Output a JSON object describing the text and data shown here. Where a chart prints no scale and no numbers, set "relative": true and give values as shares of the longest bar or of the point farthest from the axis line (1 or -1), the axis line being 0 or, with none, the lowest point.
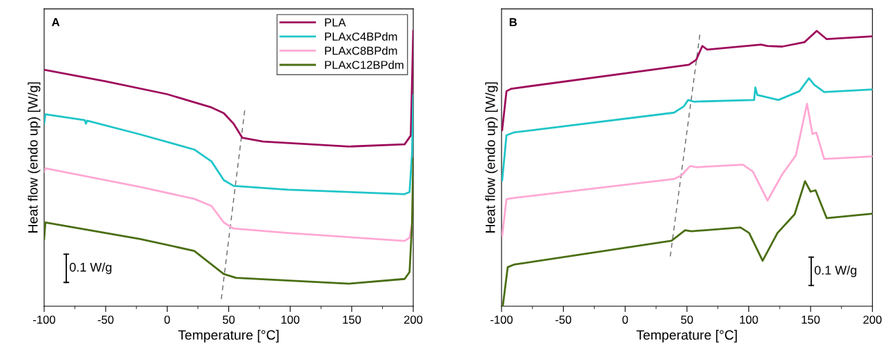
{
  "chart_data": [
    {
      "type": "line",
      "title": "A",
      "xlabel": "Temperature [°C]",
      "ylabel": "Heat flow (endo up) [W/g]",
      "relative": true,
      "xlim": [
        -100,
        200
      ],
      "xticks": [
        -100,
        -50,
        0,
        50,
        100,
        150,
        200
      ],
      "tick_labels": "x",
      "grid": false,
      "legend": "top right",
      "line_style": "solid",
      "marker": "none",
      "annotations": [
        "0.1 W/g"
      ],
      "series": [
        {
          "name": "PLA",
          "color": "#9e0a5c",
          "x": [
            -100,
            -50,
            0,
            36,
            46,
            54,
            61,
            78,
            148,
            193,
            198,
            200
          ],
          "values": [
            0.859,
            0.817,
            0.77,
            0.722,
            0.701,
            0.663,
            0.612,
            0.598,
            0.58,
            0.588,
            0.62,
            1.0
          ]
        },
        {
          "name": "PLAxC4BPdm",
          "color": "#20c5c8",
          "x": [
            -100,
            -99,
            -67,
            -66,
            -65,
            -22,
            22,
            36,
            46,
            54,
            98,
            193,
            197,
            199,
            200
          ],
          "values": [
            0.663,
            0.697,
            0.676,
            0.663,
            0.674,
            0.624,
            0.569,
            0.526,
            0.458,
            0.437,
            0.423,
            0.407,
            0.415,
            0.553,
            0.766
          ]
        },
        {
          "name": "PLAxC8BPdm",
          "color": "#ffa8d4",
          "x": [
            -100,
            -99,
            -22,
            22,
            36,
            46,
            54,
            98,
            193,
            197,
            199
          ],
          "values": [
            0.488,
            0.501,
            0.433,
            0.39,
            0.364,
            0.304,
            0.282,
            0.266,
            0.237,
            0.249,
            0.297
          ]
        },
        {
          "name": "PLAxC12BPdm",
          "color": "#4a6e12",
          "x": [
            -100,
            -99,
            -22,
            22,
            34,
            46,
            56,
            148,
            193,
            197,
            199,
            200
          ],
          "values": [
            0.244,
            0.304,
            0.244,
            0.201,
            0.159,
            0.117,
            0.103,
            0.082,
            0.099,
            0.124,
            0.297,
            0.536
          ]
        },
        {
          "type": "line",
          "color": "#666666",
          "line_style": "dashed",
          "x": [
            63,
            44
          ],
          "values": [
            0.711,
            0.026
          ]
        }
      ]
    },
    {
      "type": "line",
      "title": "B",
      "xlabel": "Temperature [°C]",
      "ylabel": "Heat flow (endo up) [W/g]",
      "relative": true,
      "xlim": [
        -100,
        200
      ],
      "xticks": [
        -100,
        -50,
        0,
        50,
        100,
        150,
        200
      ],
      "tick_labels": "x",
      "grid": false,
      "line_style": "solid",
      "marker": "none",
      "annotations": [
        "0.1 W/g"
      ],
      "series": [
        {
          "color": "#9e0a5c",
          "x": [
            -99.5,
            -96,
            -92,
            51.5,
            57.5,
            62.4,
            66.4,
            110,
            115,
            127,
            145,
            155,
            163,
            200
          ],
          "values": [
            0.64,
            0.781,
            0.79,
            0.877,
            0.895,
            0.945,
            0.932,
            0.95,
            0.945,
            0.943,
            0.959,
            1.0,
            0.97,
            0.98
          ]
        },
        {
          "color": "#20c5c8",
          "x": [
            -99.5,
            -96,
            -90,
            39.5,
            47.5,
            51,
            55.5,
            104.3,
            105.3,
            106.9,
            124,
            141,
            148.7,
            153,
            161,
            200
          ],
          "values": [
            0.457,
            0.621,
            0.631,
            0.703,
            0.726,
            0.749,
            0.743,
            0.749,
            0.795,
            0.767,
            0.749,
            0.781,
            0.828,
            0.804,
            0.778,
            0.787
          ]
        },
        {
          "color": "#ffa8d4",
          "x": [
            -99.5,
            -96,
            -90,
            39.5,
            45.5,
            52.5,
            57.5,
            95.3,
            103.3,
            115.2,
            127.2,
            138.1,
            147.1,
            151.5,
            154.7,
            161,
            200
          ],
          "values": [
            0.256,
            0.389,
            0.393,
            0.462,
            0.475,
            0.509,
            0.505,
            0.514,
            0.489,
            0.384,
            0.48,
            0.548,
            0.735,
            0.626,
            0.63,
            0.535,
            0.544
          ]
        },
        {
          "color": "#4a6e12",
          "x": [
            -99,
            -95,
            -90,
            37.5,
            48.5,
            53.5,
            93.3,
            100.3,
            111.2,
            123.2,
            137.1,
            145.5,
            150,
            154,
            163,
            200
          ],
          "values": [
            0.0,
            0.142,
            0.151,
            0.238,
            0.276,
            0.272,
            0.286,
            0.266,
            0.165,
            0.266,
            0.334,
            0.454,
            0.416,
            0.421,
            0.32,
            0.336
          ]
        },
        {
          "type": "line",
          "color": "#666666",
          "line_style": "dashed",
          "x": [
            60.4,
            36.5
          ],
          "values": [
            0.986,
            0.181
          ]
        }
      ]
    }
  ]
}
